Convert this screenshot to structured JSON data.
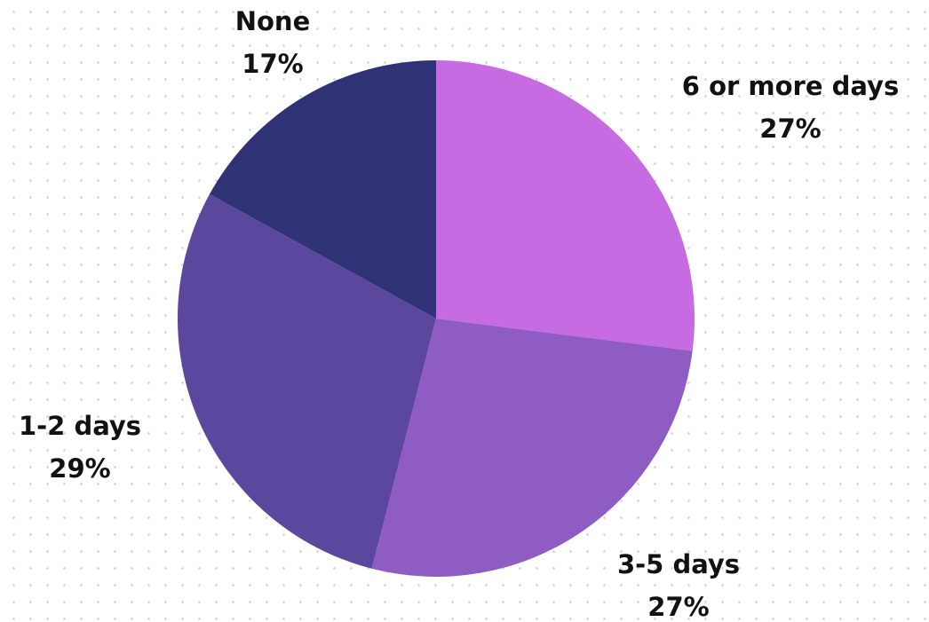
{
  "chart_data": {
    "type": "pie",
    "title": "",
    "slices": [
      {
        "label": "6 or more days",
        "value": 27,
        "value_label": "27%",
        "color": "#c76be3"
      },
      {
        "label": "3-5 days",
        "value": 27,
        "value_label": "27%",
        "color": "#8f5cc4"
      },
      {
        "label": "1-2 days",
        "value": 29,
        "value_label": "29%",
        "color": "#5b479e"
      },
      {
        "label": "None",
        "value": 17,
        "value_label": "17%",
        "color": "#2f3275"
      }
    ],
    "start_angle": "12 o'clock",
    "direction": "clockwise",
    "legend": "none"
  }
}
